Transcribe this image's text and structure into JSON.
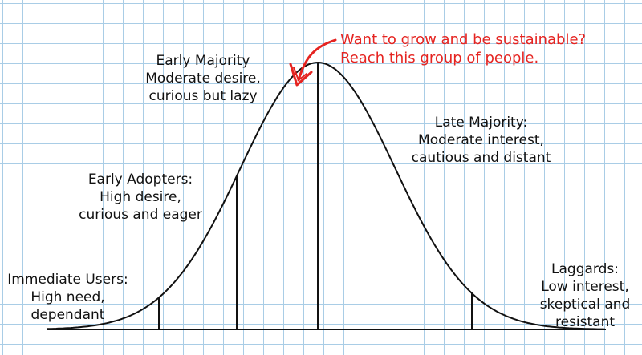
{
  "colors": {
    "grid": "#a9cde6",
    "ink": "#111111",
    "accent": "#e52421"
  },
  "segments": {
    "immediate_users": {
      "title": "Immediate Users:",
      "line1": "High need,",
      "line2": "dependant"
    },
    "early_adopters": {
      "title": "Early Adopters:",
      "line1": "High desire,",
      "line2": "curious and eager"
    },
    "early_majority": {
      "title": "Early Majority",
      "line1": "Moderate desire,",
      "line2": "curious but lazy"
    },
    "late_majority": {
      "title": "Late Majority:",
      "line1": "Moderate interest,",
      "line2": "cautious and distant"
    },
    "laggards": {
      "title": "Laggards:",
      "line1": "Low interest,",
      "line2": "skeptical and",
      "line3": "resistant"
    }
  },
  "callout": {
    "line1": "Want to grow and be sustainable?",
    "line2": "Reach this group of people."
  }
}
